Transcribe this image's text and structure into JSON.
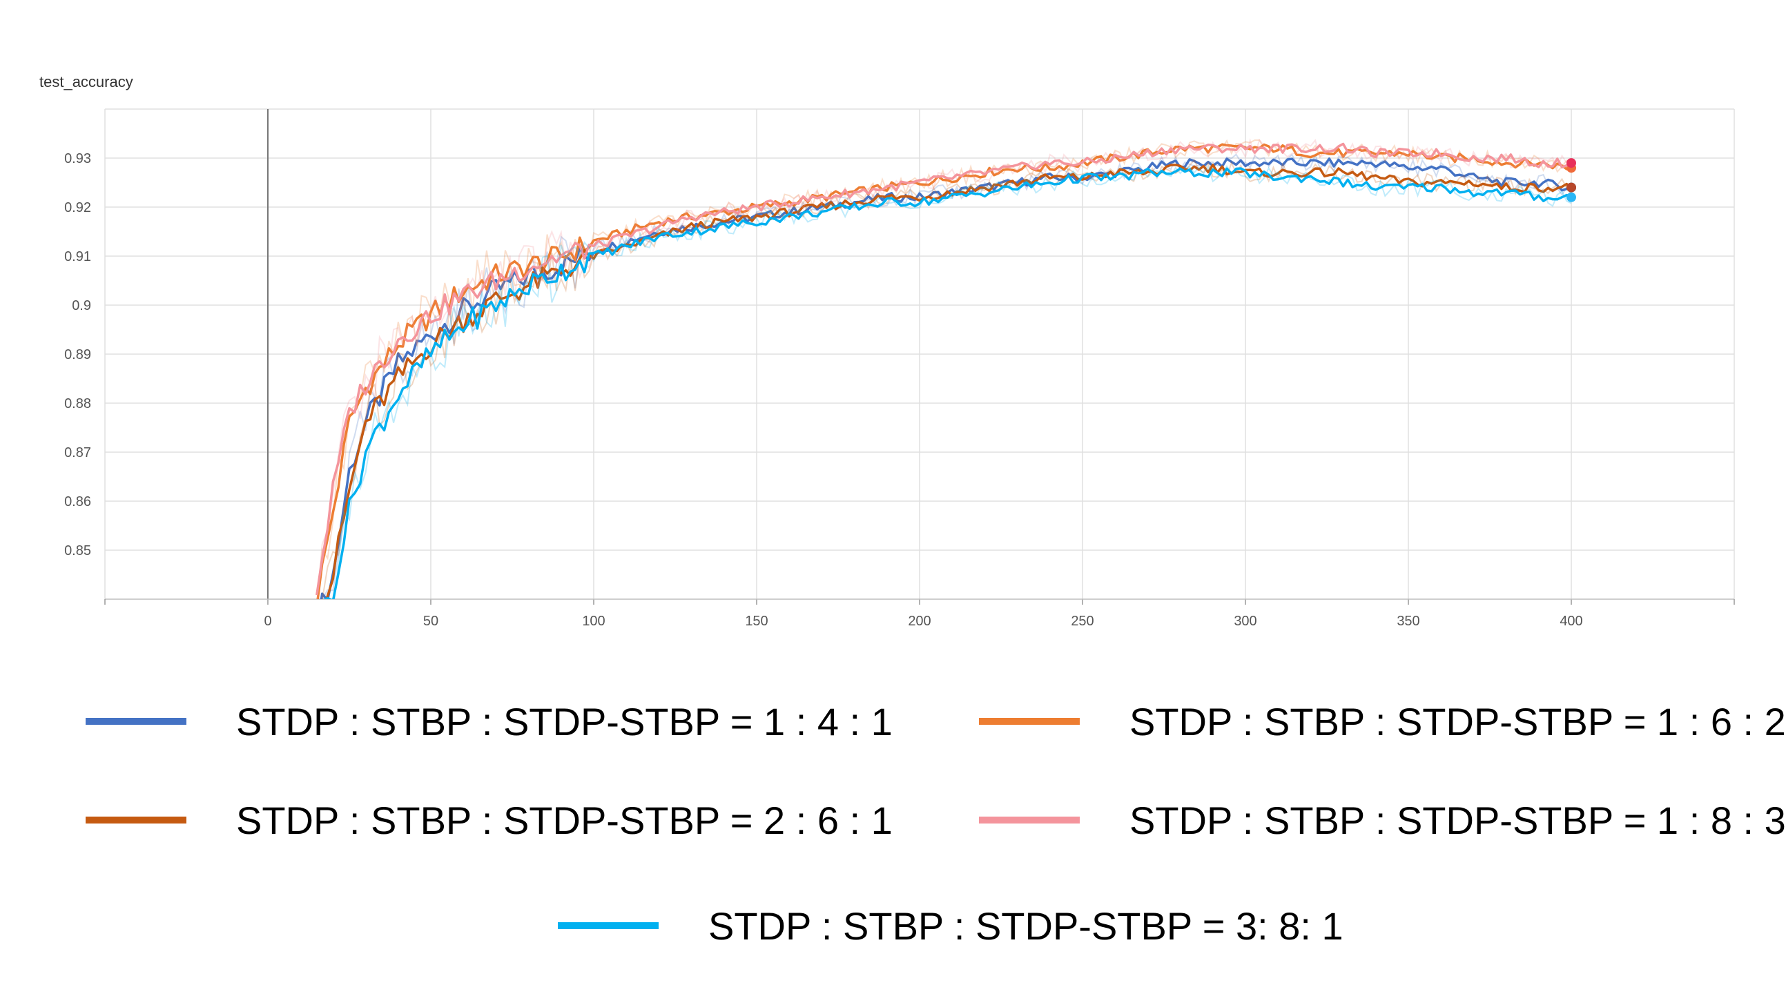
{
  "chart_data": {
    "type": "line",
    "title": "test_accuracy",
    "xlabel": "",
    "ylabel": "",
    "xlim": [
      -50,
      450
    ],
    "ylim": [
      0.84,
      0.94
    ],
    "xticks": [
      0,
      50,
      100,
      150,
      200,
      250,
      300,
      350,
      400
    ],
    "yticks": [
      0.85,
      0.86,
      0.87,
      0.88,
      0.89,
      0.9,
      0.91,
      0.92,
      0.93
    ],
    "ytick_labels": [
      "0.85",
      "0.86",
      "0.87",
      "0.88",
      "0.89",
      "0.9",
      "0.91",
      "0.92",
      "0.93"
    ],
    "grid": true,
    "legend_position": "bottom",
    "x": [
      15,
      20,
      25,
      30,
      40,
      50,
      60,
      70,
      80,
      90,
      100,
      110,
      120,
      130,
      140,
      150,
      160,
      170,
      180,
      190,
      200,
      210,
      220,
      230,
      240,
      250,
      260,
      270,
      280,
      290,
      300,
      310,
      320,
      330,
      340,
      350,
      360,
      370,
      380,
      390,
      400
    ],
    "series": [
      {
        "name": "STDP : STBP : STDP-STBP = 1 : 4 : 1",
        "color": "#4472c4",
        "point_color": "#1f5a96",
        "values": [
          0.836,
          0.845,
          0.866,
          0.876,
          0.888,
          0.894,
          0.899,
          0.903,
          0.906,
          0.908,
          0.911,
          0.913,
          0.915,
          0.916,
          0.917,
          0.918,
          0.919,
          0.92,
          0.921,
          0.922,
          0.922,
          0.923,
          0.924,
          0.925,
          0.926,
          0.926,
          0.927,
          0.928,
          0.929,
          0.929,
          0.929,
          0.929,
          0.929,
          0.929,
          0.929,
          0.928,
          0.928,
          0.926,
          0.925,
          0.925,
          0.924
        ]
      },
      {
        "name": "STDP : STBP : STDP-STBP = 1 : 6 : 2",
        "color": "#ed7d31",
        "point_color": "#f06a3a",
        "values": [
          0.84,
          0.858,
          0.876,
          0.883,
          0.892,
          0.898,
          0.903,
          0.906,
          0.908,
          0.91,
          0.913,
          0.915,
          0.917,
          0.918,
          0.919,
          0.92,
          0.921,
          0.922,
          0.923,
          0.924,
          0.925,
          0.926,
          0.927,
          0.928,
          0.928,
          0.929,
          0.93,
          0.931,
          0.932,
          0.932,
          0.932,
          0.932,
          0.931,
          0.931,
          0.931,
          0.931,
          0.93,
          0.93,
          0.929,
          0.929,
          0.928
        ]
      },
      {
        "name": "STDP : STBP : STDP-STBP = 2 : 6 : 1",
        "color": "#c55a11",
        "point_color": "#b7472a",
        "values": [
          0.834,
          0.845,
          0.862,
          0.876,
          0.885,
          0.892,
          0.897,
          0.901,
          0.904,
          0.907,
          0.91,
          0.912,
          0.914,
          0.916,
          0.917,
          0.918,
          0.919,
          0.92,
          0.921,
          0.922,
          0.922,
          0.923,
          0.924,
          0.925,
          0.926,
          0.926,
          0.927,
          0.927,
          0.928,
          0.928,
          0.927,
          0.927,
          0.927,
          0.927,
          0.926,
          0.925,
          0.925,
          0.925,
          0.924,
          0.924,
          0.924
        ]
      },
      {
        "name": "STDP : STBP : STDP-STBP = 1 : 8 : 3",
        "color": "#f4949c",
        "point_color": "#e8305a",
        "values": [
          0.842,
          0.862,
          0.878,
          0.884,
          0.893,
          0.898,
          0.902,
          0.905,
          0.908,
          0.91,
          0.912,
          0.914,
          0.916,
          0.918,
          0.919,
          0.92,
          0.921,
          0.922,
          0.923,
          0.924,
          0.925,
          0.926,
          0.927,
          0.928,
          0.929,
          0.929,
          0.93,
          0.931,
          0.932,
          0.932,
          0.932,
          0.932,
          0.932,
          0.932,
          0.931,
          0.931,
          0.931,
          0.93,
          0.93,
          0.929,
          0.929
        ]
      },
      {
        "name": "STDP : STBP : STDP-STBP = 3: 8: 1",
        "color": "#00b0f0",
        "point_color": "#29b6f6",
        "values": [
          0.836,
          0.842,
          0.858,
          0.87,
          0.882,
          0.89,
          0.896,
          0.9,
          0.904,
          0.907,
          0.91,
          0.912,
          0.914,
          0.915,
          0.916,
          0.917,
          0.918,
          0.919,
          0.92,
          0.921,
          0.921,
          0.922,
          0.923,
          0.924,
          0.925,
          0.926,
          0.926,
          0.927,
          0.927,
          0.927,
          0.927,
          0.926,
          0.926,
          0.925,
          0.924,
          0.924,
          0.924,
          0.923,
          0.923,
          0.922,
          0.922
        ]
      }
    ]
  }
}
